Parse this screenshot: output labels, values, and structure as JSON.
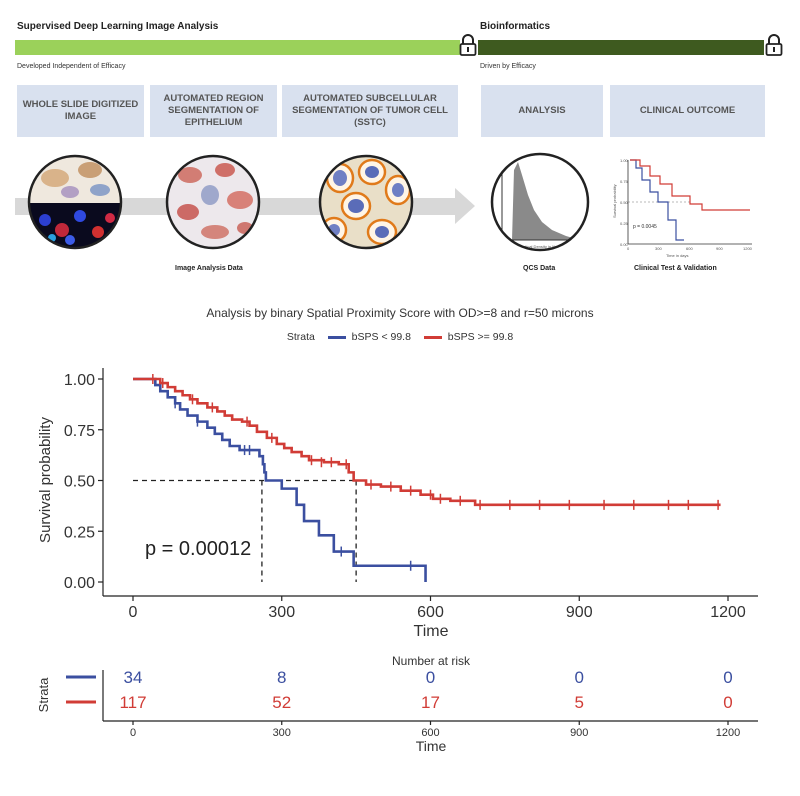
{
  "workflow": {
    "left_title": "Supervised Deep Learning Image Analysis",
    "left_sub": "Developed Independent of Efficacy",
    "right_title": "Bioinformatics",
    "right_sub": "Driven by Efficacy",
    "stages": [
      "WHOLE SLIDE DIGITIZED  IMAGE",
      "AUTOMATED REGION SEGMENTATION OF EPITHELIUM",
      "AUTOMATED SUBCELLULAR SEGMENTATION OF TUMOR CELL (SSTC)",
      "ANALYSIS",
      "CLINICAL OUTCOME"
    ],
    "captions": {
      "image_analysis": "Image Analysis Data",
      "qcs": "QCS Data",
      "clinical": "Clinical Test & Validation"
    },
    "mini_km": {
      "p_label": "p = 0.0045",
      "xlabel": "Time in days",
      "ylabel": "Survival probability",
      "y_ticks": [
        "1.00",
        "0.75",
        "0.50",
        "0.25",
        "0.00"
      ],
      "x_ticks": [
        "0",
        "300",
        "600",
        "900",
        "1200"
      ]
    },
    "mini_hist_xlabel": "Optical Density in Nucleus",
    "colors": {
      "left_bar": "#9bd15a",
      "right_bar": "#3e5a1f",
      "stage_bg": "#d9e1ef"
    }
  },
  "chart_data": {
    "type": "line",
    "subtype": "kaplan-meier",
    "title": "Analysis by binary Spatial Proximity Score with OD>=8 and r=50 microns",
    "legend_title": "Strata",
    "xlabel": "Time",
    "ylabel": "Survival probability",
    "xlim": [
      0,
      1200
    ],
    "ylim": [
      0,
      1
    ],
    "x_ticks": [
      0,
      300,
      600,
      900,
      1200
    ],
    "y_ticks": [
      0,
      0.25,
      0.5,
      0.75,
      1.0
    ],
    "y_tick_labels": [
      "0.00",
      "0.25",
      "0.50",
      "0.75",
      "1.00"
    ],
    "p_value_label": "p = 0.00012",
    "median_survival": [
      260,
      450
    ],
    "series": [
      {
        "name": "bSPS < 99.8",
        "color": "#3b4fa0",
        "steps": [
          [
            0,
            1.0
          ],
          [
            35,
            1.0
          ],
          [
            45,
            0.97
          ],
          [
            55,
            0.94
          ],
          [
            70,
            0.91
          ],
          [
            85,
            0.88
          ],
          [
            95,
            0.85
          ],
          [
            110,
            0.82
          ],
          [
            130,
            0.79
          ],
          [
            150,
            0.76
          ],
          [
            165,
            0.73
          ],
          [
            180,
            0.7
          ],
          [
            195,
            0.67
          ],
          [
            215,
            0.65
          ],
          [
            245,
            0.65
          ],
          [
            255,
            0.62
          ],
          [
            262,
            0.58
          ],
          [
            265,
            0.54
          ],
          [
            268,
            0.5
          ],
          [
            300,
            0.46
          ],
          [
            330,
            0.38
          ],
          [
            345,
            0.3
          ],
          [
            375,
            0.23
          ],
          [
            405,
            0.15
          ],
          [
            445,
            0.08
          ],
          [
            590,
            0.08
          ],
          [
            590,
            0.0
          ]
        ],
        "censor": [
          [
            85,
            0.88
          ],
          [
            130,
            0.79
          ],
          [
            225,
            0.65
          ],
          [
            235,
            0.65
          ],
          [
            420,
            0.15
          ],
          [
            560,
            0.08
          ]
        ]
      },
      {
        "name": "bSPS >= 99.8",
        "color": "#d13c36",
        "steps": [
          [
            0,
            1.0
          ],
          [
            45,
            1.0
          ],
          [
            55,
            0.98
          ],
          [
            70,
            0.96
          ],
          [
            85,
            0.94
          ],
          [
            100,
            0.92
          ],
          [
            115,
            0.9
          ],
          [
            130,
            0.88
          ],
          [
            150,
            0.86
          ],
          [
            170,
            0.84
          ],
          [
            185,
            0.82
          ],
          [
            200,
            0.8
          ],
          [
            220,
            0.79
          ],
          [
            235,
            0.77
          ],
          [
            250,
            0.74
          ],
          [
            270,
            0.71
          ],
          [
            290,
            0.68
          ],
          [
            305,
            0.66
          ],
          [
            320,
            0.64
          ],
          [
            340,
            0.62
          ],
          [
            355,
            0.6
          ],
          [
            385,
            0.59
          ],
          [
            415,
            0.58
          ],
          [
            435,
            0.54
          ],
          [
            445,
            0.5
          ],
          [
            470,
            0.48
          ],
          [
            500,
            0.47
          ],
          [
            540,
            0.45
          ],
          [
            580,
            0.43
          ],
          [
            605,
            0.41
          ],
          [
            640,
            0.4
          ],
          [
            690,
            0.38
          ],
          [
            1185,
            0.38
          ]
        ],
        "censor": [
          [
            40,
            1.0
          ],
          [
            60,
            0.98
          ],
          [
            120,
            0.9
          ],
          [
            160,
            0.86
          ],
          [
            230,
            0.79
          ],
          [
            280,
            0.71
          ],
          [
            360,
            0.6
          ],
          [
            380,
            0.59
          ],
          [
            400,
            0.59
          ],
          [
            430,
            0.58
          ],
          [
            480,
            0.48
          ],
          [
            520,
            0.47
          ],
          [
            560,
            0.45
          ],
          [
            600,
            0.43
          ],
          [
            620,
            0.41
          ],
          [
            660,
            0.4
          ],
          [
            700,
            0.38
          ],
          [
            760,
            0.38
          ],
          [
            820,
            0.38
          ],
          [
            880,
            0.38
          ],
          [
            950,
            0.38
          ],
          [
            1010,
            0.38
          ],
          [
            1080,
            0.38
          ],
          [
            1120,
            0.38
          ],
          [
            1180,
            0.38
          ]
        ]
      }
    ],
    "risk_table": {
      "title": "Number at risk",
      "xlabel": "Time",
      "ylabel": "Strata",
      "times": [
        0,
        300,
        600,
        900,
        1200
      ],
      "rows": [
        {
          "values": [
            34,
            8,
            0,
            0,
            0
          ],
          "color": "#3b4fa0"
        },
        {
          "values": [
            117,
            52,
            17,
            5,
            0
          ],
          "color": "#d13c36"
        }
      ]
    }
  }
}
